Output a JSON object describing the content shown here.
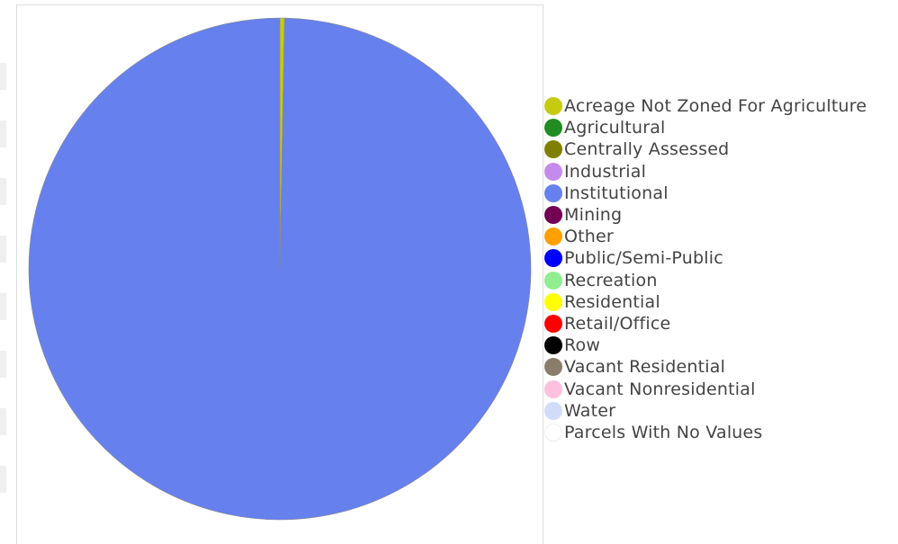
{
  "chart_data": {
    "type": "pie",
    "title": "",
    "legend_position": "right",
    "slices": [
      {
        "label": "Acreage Not Zoned For Agriculture",
        "value": 0.3,
        "color": "#c5cc10"
      },
      {
        "label": "Agricultural",
        "value": 0,
        "color": "#228b22"
      },
      {
        "label": "Centrally Assessed",
        "value": 0,
        "color": "#808000"
      },
      {
        "label": "Industrial",
        "value": 0,
        "color": "#c58bec"
      },
      {
        "label": "Institutional",
        "value": 99.7,
        "color": "#6680ee"
      },
      {
        "label": "Mining",
        "value": 0,
        "color": "#730053"
      },
      {
        "label": "Other",
        "value": 0,
        "color": "#ffa000"
      },
      {
        "label": "Public/Semi-Public",
        "value": 0,
        "color": "#0000ff"
      },
      {
        "label": "Recreation",
        "value": 0,
        "color": "#90ee90"
      },
      {
        "label": "Residential",
        "value": 0,
        "color": "#ffff00"
      },
      {
        "label": "Retail/Office",
        "value": 0,
        "color": "#ff0000"
      },
      {
        "label": "Row",
        "value": 0,
        "color": "#000000"
      },
      {
        "label": "Vacant Residential",
        "value": 0,
        "color": "#8b7d6b"
      },
      {
        "label": "Vacant Nonresidential",
        "value": 0,
        "color": "#ffc0e0"
      },
      {
        "label": "Water",
        "value": 0,
        "color": "#d0dcfa"
      },
      {
        "label": "Parcels With No Values",
        "value": 0,
        "color": "#ffffff"
      }
    ]
  }
}
